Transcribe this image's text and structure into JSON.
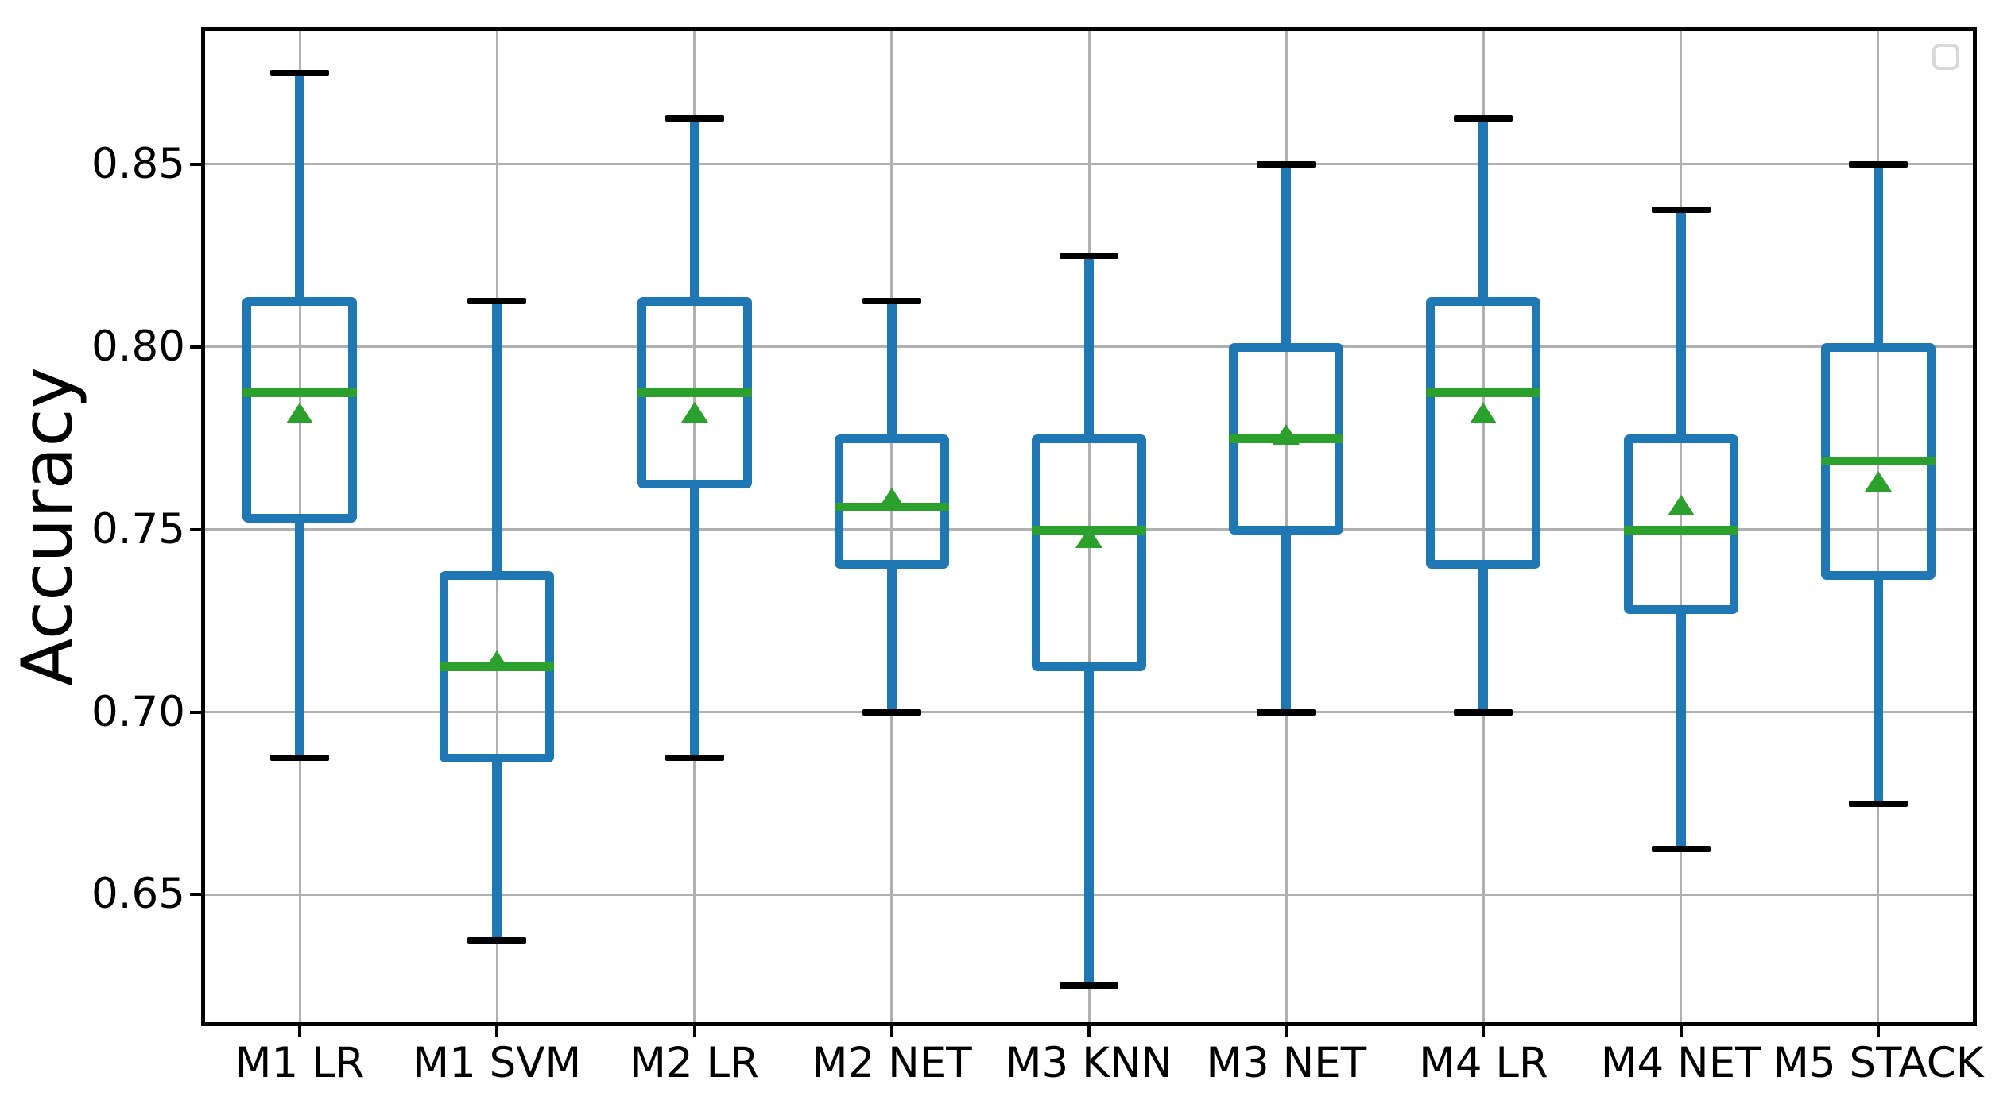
{
  "figure": {
    "background": "#ffffff"
  },
  "chart_data": {
    "type": "boxplot",
    "title": "",
    "xlabel": "",
    "ylabel": "Accuracy",
    "categories": [
      "M1 LR",
      "M1 SVM",
      "M2 LR",
      "M2 NET",
      "M3 KNN",
      "M3 NET",
      "M4 LR",
      "M4 NET",
      "M5 STACK"
    ],
    "series": [
      {
        "name": "M1 LR",
        "whisker_low": 0.6875,
        "q1": 0.7531,
        "median": 0.7875,
        "mean": 0.7819,
        "q3": 0.8125,
        "whisker_high": 0.875
      },
      {
        "name": "M1 SVM",
        "whisker_low": 0.6375,
        "q1": 0.6875,
        "median": 0.7125,
        "mean": 0.7141,
        "q3": 0.7375,
        "whisker_high": 0.8125
      },
      {
        "name": "M2 LR",
        "whisker_low": 0.6875,
        "q1": 0.7625,
        "median": 0.7875,
        "mean": 0.7822,
        "q3": 0.8125,
        "whisker_high": 0.8625
      },
      {
        "name": "M2 NET",
        "whisker_low": 0.7,
        "q1": 0.7406,
        "median": 0.7563,
        "mean": 0.7586,
        "q3": 0.775,
        "whisker_high": 0.8125
      },
      {
        "name": "M3 KNN",
        "whisker_low": 0.625,
        "q1": 0.7125,
        "median": 0.75,
        "mean": 0.7478,
        "q3": 0.775,
        "whisker_high": 0.825
      },
      {
        "name": "M3 NET",
        "whisker_low": 0.7,
        "q1": 0.75,
        "median": 0.775,
        "mean": 0.7761,
        "q3": 0.8,
        "whisker_high": 0.85
      },
      {
        "name": "M4 LR",
        "whisker_low": 0.7,
        "q1": 0.7406,
        "median": 0.7875,
        "mean": 0.782,
        "q3": 0.8125,
        "whisker_high": 0.8625
      },
      {
        "name": "M4 NET",
        "whisker_low": 0.6625,
        "q1": 0.7281,
        "median": 0.75,
        "mean": 0.7566,
        "q3": 0.775,
        "whisker_high": 0.8375
      },
      {
        "name": "M5 STACK",
        "whisker_low": 0.675,
        "q1": 0.7375,
        "median": 0.7688,
        "mean": 0.7631,
        "q3": 0.8,
        "whisker_high": 0.85
      }
    ],
    "yticks": [
      0.65,
      0.7,
      0.75,
      0.8,
      0.85
    ],
    "ytick_labels": [
      "0.65",
      "0.70",
      "0.75",
      "0.80",
      "0.85"
    ],
    "ylim": [
      0.614,
      0.8876
    ],
    "grid": true,
    "legend": {
      "position": "upper right",
      "items": [],
      "empty_box": true
    },
    "mean_marker_shape": "triangle_up",
    "colors": {
      "box": "#1f77b4",
      "whisker": "#1f77b4",
      "cap": "#000000",
      "median": "#2ca02c",
      "mean_marker": "#2ca02c",
      "grid": "#b0b0b0",
      "spine": "#000000",
      "text": "#000000",
      "background": "#ffffff",
      "legend_border": "#d9d9d9"
    }
  }
}
